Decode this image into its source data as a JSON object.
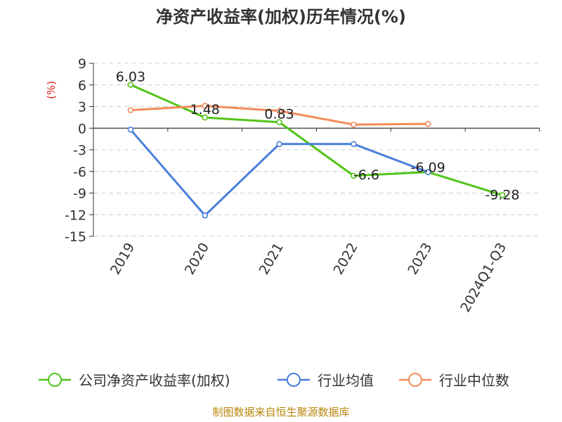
{
  "chart_data": {
    "type": "line",
    "title": "净资产收益率(加权)历年情况(%)",
    "ylabel": "(%)",
    "categories": [
      "2019",
      "2020",
      "2021",
      "2022",
      "2023",
      "2024Q1-Q3"
    ],
    "ylim": [
      -15,
      9
    ],
    "yticks": [
      9,
      6,
      3,
      0,
      -3,
      -6,
      -9,
      -12,
      -15
    ],
    "grid": true,
    "legend": "bottom",
    "series": [
      {
        "name": "公司净资产收益率(加权)",
        "color": "#52c41a",
        "values": [
          6.03,
          1.48,
          0.83,
          -6.6,
          -6.09,
          -9.28
        ],
        "labels": [
          "6.03",
          "1.48",
          "0.83",
          "-6.6",
          "-6.09",
          "-9.28"
        ]
      },
      {
        "name": "行业均值",
        "color": "#4a7fdc",
        "values": [
          -0.2,
          -12.1,
          -2.2,
          -2.2,
          -6.1,
          null
        ],
        "labels": []
      },
      {
        "name": "行业中位数",
        "color": "#f28c5a",
        "values": [
          2.5,
          3.1,
          2.4,
          0.5,
          0.6,
          null
        ],
        "labels": []
      }
    ]
  },
  "source": "制图数据来自恒生聚源数据库"
}
